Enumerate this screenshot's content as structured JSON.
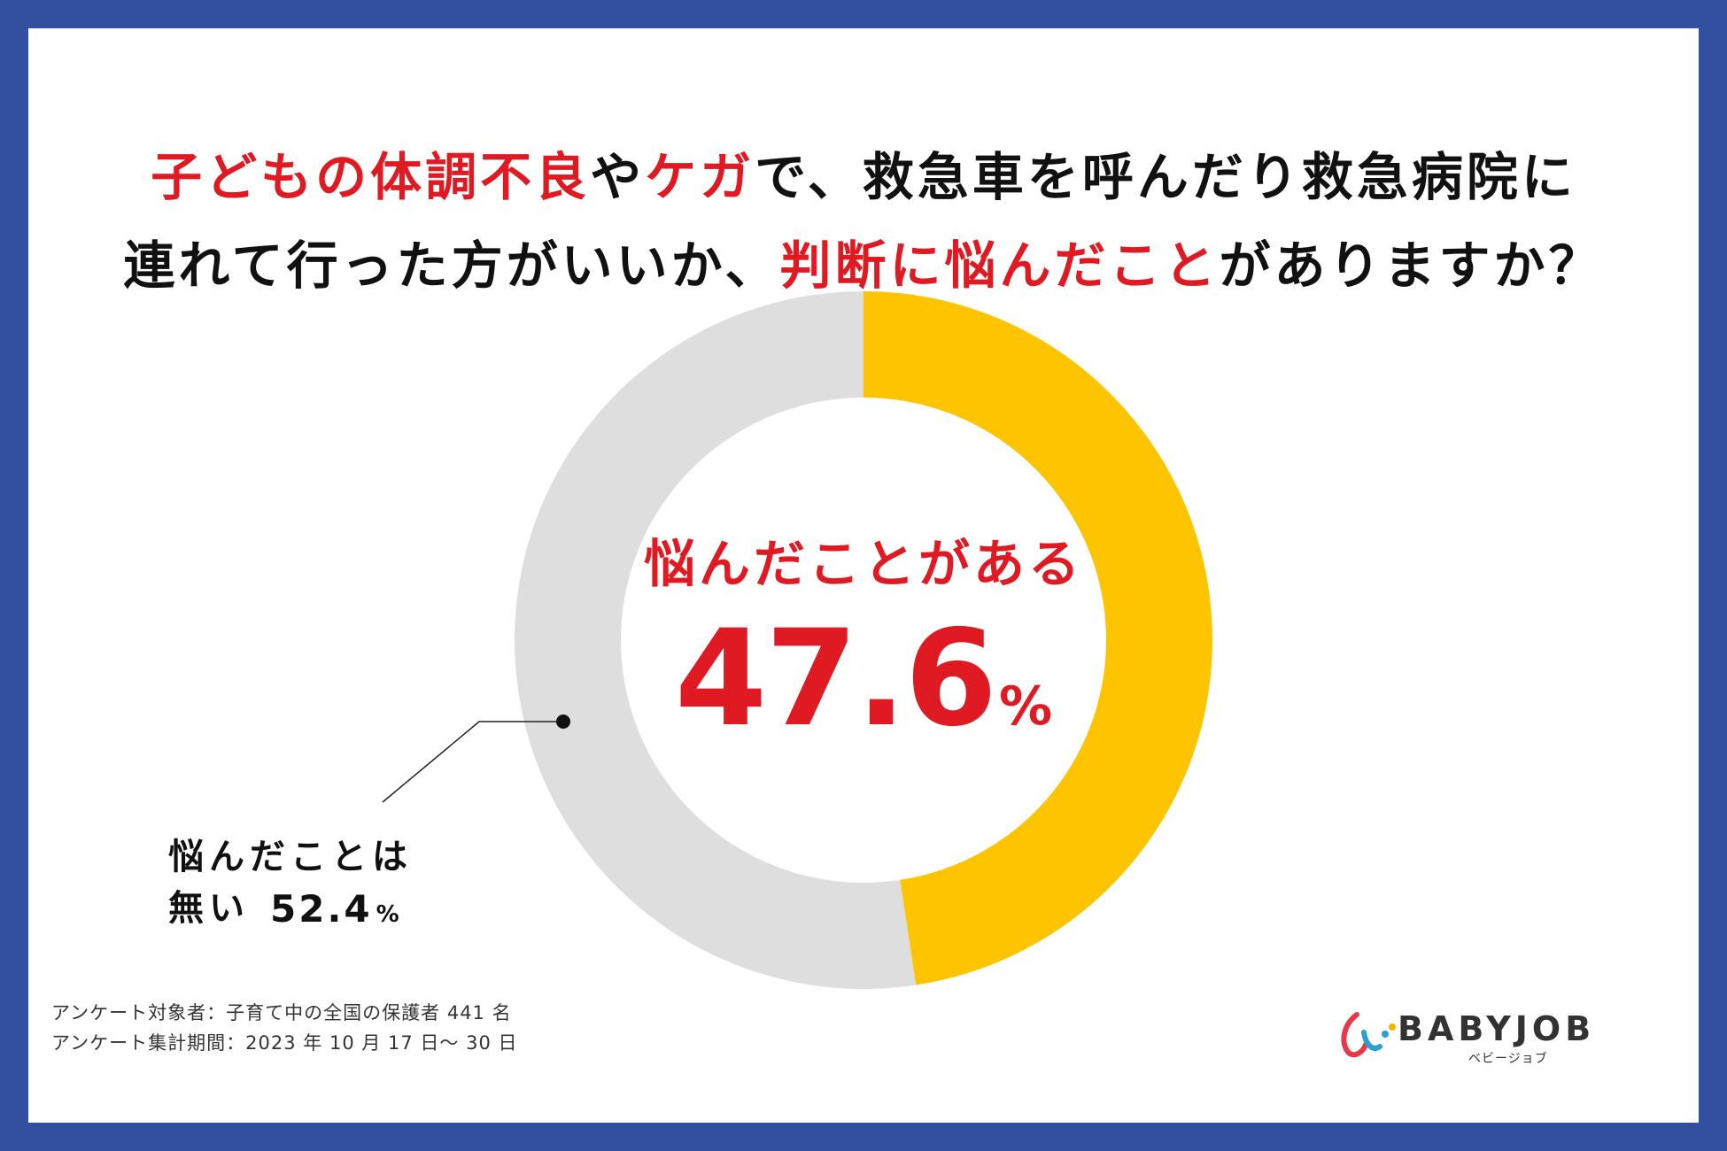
{
  "title": {
    "line1": [
      {
        "text": "子どもの体調不良",
        "color": "red"
      },
      {
        "text": "や",
        "color": "black"
      },
      {
        "text": "ケガ",
        "color": "red"
      },
      {
        "text": "で、救急車を呼んだり救急病院に",
        "color": "black"
      }
    ],
    "line2": [
      {
        "text": "連れて行った方がいいか、",
        "color": "black"
      },
      {
        "text": "判断に悩んだこと",
        "color": "red"
      },
      {
        "text": "がありますか？",
        "color": "black"
      }
    ]
  },
  "chart_data": {
    "type": "pie",
    "style": "donut",
    "slices": [
      {
        "label": "悩んだことがある",
        "value": 47.6,
        "unit": "%",
        "color": "#ffc400"
      },
      {
        "label": "悩んだことは無い",
        "value": 52.4,
        "unit": "%",
        "color": "#dedede"
      }
    ],
    "start_angle": "top (12 o'clock), clockwise"
  },
  "footer": {
    "line1": "アンケート対象者：子育て中の全国の保護者 441 名",
    "line2": "アンケート集計期間：2023 年 10 月 17 日～ 30 日"
  },
  "logo": {
    "name": "BABYJOB",
    "sub": "ベビージョブ"
  },
  "colors": {
    "border": "#3350a0",
    "accent_red": "#e01a22",
    "accent_yellow": "#ffc400",
    "gray": "#dedede"
  }
}
